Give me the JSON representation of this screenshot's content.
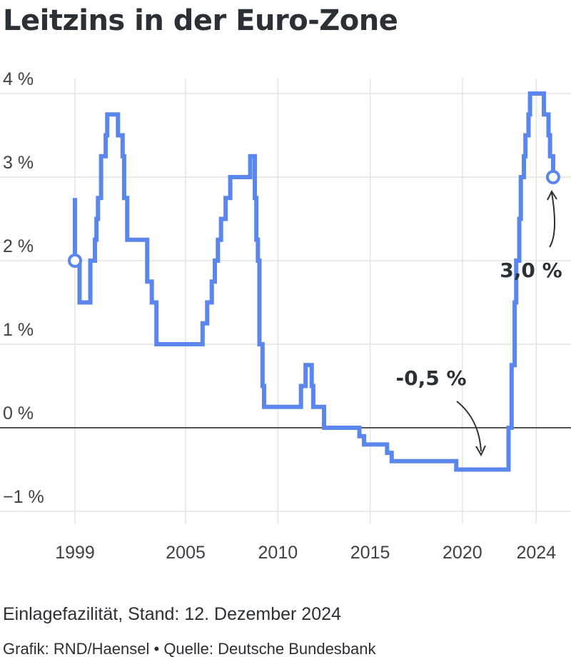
{
  "chart_data": {
    "type": "line",
    "title": "Leitzins in der Euro-Zone",
    "subtitle": "Einlagefazilität, Stand: 12. Dezember 2024",
    "source": "Grafik: RND/Haensel • Quelle: Deutsche Bundesbank",
    "xlabel": "",
    "ylabel": "",
    "x_ticks": [
      "1999",
      "2005",
      "2010",
      "2015",
      "2020",
      "2024"
    ],
    "y_ticks": [
      "4 %",
      "3 %",
      "2 %",
      "1 %",
      "0 %",
      "−1 %"
    ],
    "ylim": [
      -1,
      4
    ],
    "grid": true,
    "line_color": "#5a86ee",
    "annotations": [
      {
        "text": "-0,5 %",
        "x": "2021-06",
        "y": -0.5
      },
      {
        "text": "3,0 %",
        "x": "2024-12",
        "y": 3.0
      }
    ],
    "series": [
      {
        "points": [
          [
            "1999-01",
            2.0
          ],
          [
            "1999-01",
            2.75
          ],
          [
            "1999-01",
            2.0
          ],
          [
            "1999-04",
            1.5
          ],
          [
            "1999-11",
            2.0
          ],
          [
            "2000-02",
            2.25
          ],
          [
            "2000-03",
            2.5
          ],
          [
            "2000-04",
            2.75
          ],
          [
            "2000-06",
            3.25
          ],
          [
            "2000-09",
            3.5
          ],
          [
            "2000-10",
            3.75
          ],
          [
            "2001-05",
            3.5
          ],
          [
            "2001-08",
            3.25
          ],
          [
            "2001-09",
            2.75
          ],
          [
            "2001-11",
            2.25
          ],
          [
            "2002-12",
            1.75
          ],
          [
            "2003-03",
            1.5
          ],
          [
            "2003-06",
            1.0
          ],
          [
            "2005-12",
            1.25
          ],
          [
            "2006-03",
            1.5
          ],
          [
            "2006-06",
            1.75
          ],
          [
            "2006-08",
            2.0
          ],
          [
            "2006-10",
            2.25
          ],
          [
            "2006-12",
            2.5
          ],
          [
            "2007-03",
            2.75
          ],
          [
            "2007-06",
            3.0
          ],
          [
            "2008-07",
            3.25
          ],
          [
            "2008-10",
            2.75
          ],
          [
            "2008-11",
            2.25
          ],
          [
            "2008-12",
            2.0
          ],
          [
            "2009-01",
            1.0
          ],
          [
            "2009-03",
            0.5
          ],
          [
            "2009-04",
            0.25
          ],
          [
            "2011-04",
            0.5
          ],
          [
            "2011-07",
            0.75
          ],
          [
            "2011-11",
            0.5
          ],
          [
            "2011-12",
            0.25
          ],
          [
            "2012-07",
            0.0
          ],
          [
            "2014-06",
            -0.1
          ],
          [
            "2014-09",
            -0.2
          ],
          [
            "2015-12",
            -0.3
          ],
          [
            "2016-03",
            -0.4
          ],
          [
            "2019-09",
            -0.5
          ],
          [
            "2022-07",
            0.0
          ],
          [
            "2022-09",
            0.75
          ],
          [
            "2022-11",
            1.5
          ],
          [
            "2022-12",
            2.0
          ],
          [
            "2023-02",
            2.5
          ],
          [
            "2023-03",
            3.0
          ],
          [
            "2023-05",
            3.25
          ],
          [
            "2023-06",
            3.5
          ],
          [
            "2023-08",
            3.75
          ],
          [
            "2023-09",
            4.0
          ],
          [
            "2024-06",
            3.75
          ],
          [
            "2024-09",
            3.5
          ],
          [
            "2024-10",
            3.25
          ],
          [
            "2024-12",
            3.0
          ]
        ]
      }
    ]
  }
}
